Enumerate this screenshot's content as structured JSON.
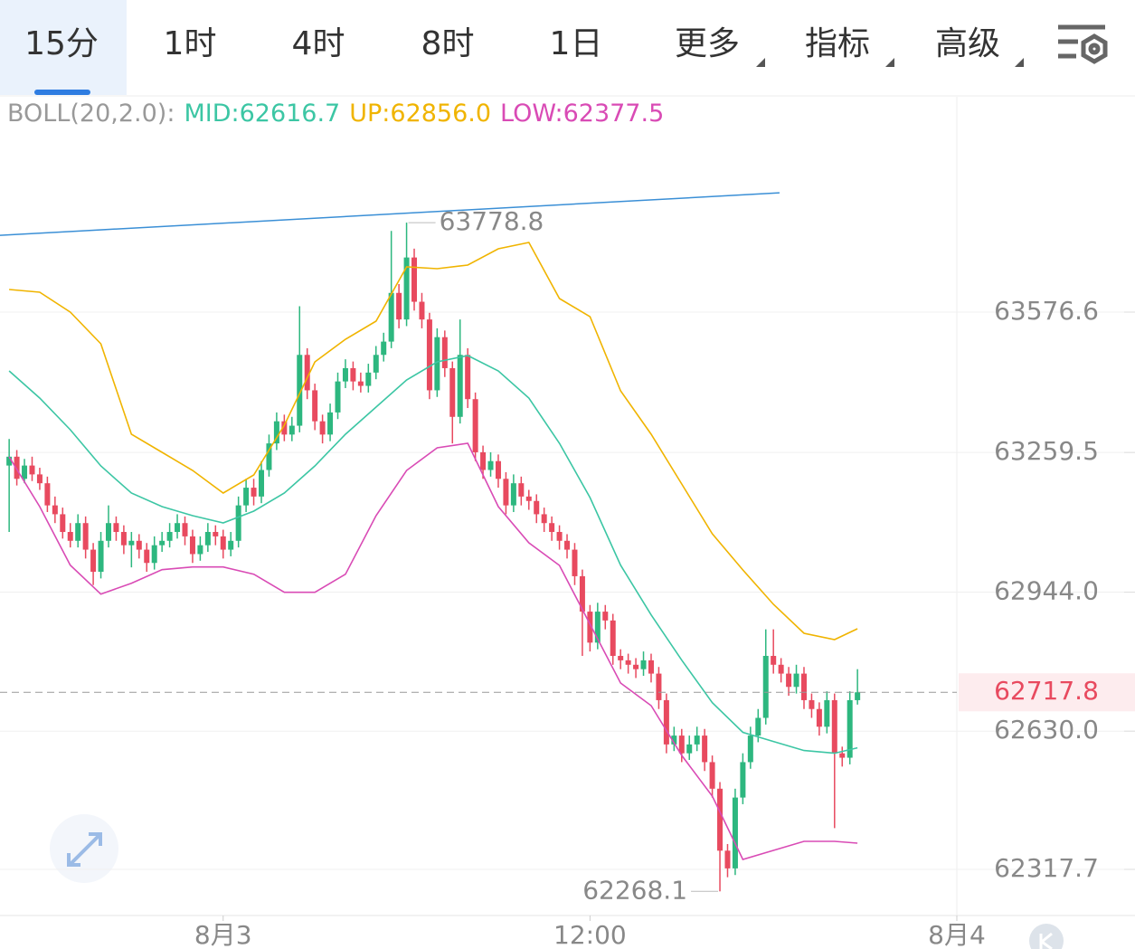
{
  "tabs": [
    "15分",
    "1时",
    "4时",
    "8时",
    "1日",
    "更多",
    "指标",
    "高级"
  ],
  "chart_data": {
    "type": "candlestick",
    "indicator_label": "BOLL(20,2.0):",
    "mid_label": "MID:62616.7",
    "up_label": "UP:62856.0",
    "low_label": "LOW:62377.5",
    "up_color": "#2db77f",
    "down_color": "#e84a5f",
    "x": [
      -7,
      -6.75,
      -6.5,
      -6.25,
      -6,
      -5.75,
      -5.5,
      -5.25,
      -5,
      -4.75,
      -4.5,
      -4.25,
      -4,
      -3.75,
      -3.5,
      -3.25,
      -3,
      -2.75,
      -2.5,
      -2.25,
      -2,
      -1.75,
      -1.5,
      -1.25,
      -1,
      -0.75,
      -0.5,
      -0.25,
      0,
      0.25,
      0.5,
      0.75,
      1,
      1.25,
      1.5,
      1.75,
      2,
      2.25,
      2.5,
      2.75,
      3,
      3.25,
      3.5,
      3.75,
      4,
      4.25,
      4.5,
      4.75,
      5,
      5.25,
      5.5,
      5.75,
      6,
      6.25,
      6.5,
      6.75,
      7,
      7.25,
      7.5,
      7.75,
      8,
      8.25,
      8.5,
      8.75,
      9,
      9.25,
      9.5,
      9.75,
      10,
      10.25,
      10.5,
      10.75,
      11,
      11.25,
      11.5,
      11.75,
      12,
      12.25,
      12.5,
      12.75,
      13,
      13.25,
      13.5,
      13.75,
      14,
      14.25,
      14.5,
      14.75,
      15,
      15.25,
      15.5,
      15.75,
      16,
      16.25,
      16.5,
      16.75,
      17,
      17.25,
      17.5,
      17.75,
      18,
      18.25,
      18.5,
      18.75,
      19,
      19.25,
      19.5,
      19.75,
      20,
      20.25,
      20.5,
      20.75
    ],
    "open": [
      63230,
      63250,
      63200,
      63230,
      63210,
      63190,
      63140,
      63120,
      63080,
      63060,
      63100,
      63040,
      62990,
      63060,
      63100,
      63080,
      63050,
      63060,
      63040,
      63010,
      63050,
      63060,
      63080,
      63100,
      63070,
      63030,
      63050,
      63080,
      63070,
      63040,
      63060,
      63140,
      63180,
      63160,
      63220,
      63280,
      63330,
      63300,
      63320,
      63480,
      63400,
      63330,
      63300,
      63350,
      63420,
      63450,
      63420,
      63410,
      63440,
      63480,
      63510,
      63620,
      63560,
      63700,
      63600,
      63560,
      63400,
      63520,
      63450,
      63340,
      63480,
      63380,
      63260,
      63220,
      63240,
      63200,
      63140,
      63190,
      63160,
      63150,
      63120,
      63100,
      63080,
      63060,
      63040,
      62980,
      62900,
      62830,
      62900,
      62880,
      62800,
      62790,
      62780,
      62770,
      62790,
      62760,
      62700,
      62600,
      62620,
      62580,
      62600,
      62620,
      62560,
      62500,
      62360,
      62320,
      62480,
      62560,
      62620,
      62660,
      62800,
      62780,
      62760,
      62730,
      62760,
      62700,
      62680,
      62640,
      62700,
      62580,
      62570,
      62700
    ],
    "high": [
      63290,
      63265,
      63245,
      63250,
      63225,
      63205,
      63160,
      63135,
      63100,
      63120,
      63115,
      63055,
      63080,
      63140,
      63115,
      63095,
      63080,
      63075,
      63055,
      63070,
      63080,
      63100,
      63120,
      63115,
      63085,
      63070,
      63100,
      63095,
      63085,
      63080,
      63160,
      63200,
      63200,
      63240,
      63300,
      63350,
      63345,
      63340,
      63590,
      63495,
      63415,
      63345,
      63370,
      63440,
      63470,
      63465,
      63440,
      63460,
      63500,
      63530,
      63760,
      63640,
      63778.8,
      63720,
      63620,
      63575,
      63540,
      63535,
      63465,
      63560,
      63495,
      63395,
      63275,
      63260,
      63255,
      63215,
      63210,
      63205,
      63175,
      63165,
      63135,
      63115,
      63095,
      63075,
      63055,
      62995,
      62915,
      62920,
      62915,
      62895,
      62815,
      62805,
      62795,
      62810,
      62805,
      62775,
      62715,
      62640,
      62635,
      62620,
      62640,
      62635,
      62575,
      62515,
      62375,
      62500,
      62580,
      62640,
      62680,
      62860,
      62860,
      62795,
      62775,
      62780,
      62775,
      62715,
      62695,
      62720,
      62715,
      62595,
      62720,
      62770
    ],
    "low": [
      63080,
      63185,
      63190,
      63195,
      63175,
      63125,
      63100,
      63065,
      63045,
      63045,
      63020,
      62960,
      62975,
      63045,
      63060,
      63030,
      63000,
      63020,
      62990,
      62995,
      63035,
      63045,
      63065,
      63050,
      63010,
      63015,
      63035,
      63050,
      63020,
      63025,
      63045,
      63125,
      63140,
      63145,
      63205,
      63265,
      63285,
      63285,
      63305,
      63380,
      63310,
      63280,
      63285,
      63335,
      63405,
      63400,
      63395,
      63395,
      63425,
      63465,
      63495,
      63540,
      63545,
      63580,
      63540,
      63380,
      63385,
      63430,
      63280,
      63325,
      63360,
      63240,
      63200,
      63205,
      63180,
      63120,
      63125,
      63140,
      63130,
      63100,
      63080,
      63060,
      63040,
      63020,
      62960,
      62800,
      62810,
      62815,
      62860,
      62780,
      62770,
      62760,
      62750,
      62755,
      62740,
      62680,
      62580,
      62585,
      62560,
      62565,
      62585,
      62540,
      62480,
      62268.1,
      62300,
      62305,
      62465,
      62545,
      62605,
      62645,
      62760,
      62740,
      62710,
      62715,
      62680,
      62660,
      62620,
      62625,
      62411,
      62550,
      62555,
      62690
    ],
    "close": [
      63250,
      63200,
      63230,
      63210,
      63190,
      63140,
      63120,
      63080,
      63060,
      63100,
      63040,
      62990,
      63060,
      63100,
      63080,
      63050,
      63060,
      63040,
      63010,
      63050,
      63060,
      63080,
      63100,
      63070,
      63030,
      63050,
      63080,
      63070,
      63040,
      63060,
      63140,
      63180,
      63160,
      63220,
      63280,
      63330,
      63300,
      63320,
      63480,
      63400,
      63330,
      63300,
      63350,
      63420,
      63450,
      63420,
      63410,
      63440,
      63480,
      63510,
      63620,
      63560,
      63700,
      63600,
      63560,
      63400,
      63520,
      63450,
      63340,
      63480,
      63380,
      63260,
      63220,
      63240,
      63200,
      63140,
      63190,
      63160,
      63150,
      63120,
      63100,
      63080,
      63060,
      63040,
      62980,
      62900,
      62830,
      62900,
      62880,
      62800,
      62790,
      62780,
      62770,
      62790,
      62760,
      62700,
      62600,
      62620,
      62580,
      62600,
      62620,
      62560,
      62500,
      62360,
      62320,
      62480,
      62560,
      62620,
      62660,
      62800,
      62780,
      62760,
      62730,
      62760,
      62700,
      62680,
      62640,
      62700,
      62580,
      62570,
      62700,
      62717.8
    ],
    "band_x": [
      -7,
      -6,
      -5,
      -4,
      -3,
      -2,
      -1,
      0,
      1,
      2,
      3,
      4,
      5,
      6,
      7,
      8,
      9,
      10,
      11,
      12,
      13,
      14,
      15,
      16,
      17,
      18,
      19,
      20,
      20.75
    ],
    "bands": [
      {
        "color": "#f0b400",
        "values": [
          63627.7,
          63621.6,
          63576.6,
          63505.1,
          63300.7,
          63259.8,
          63219.0,
          63167.9,
          63208.7,
          63321.1,
          63464.2,
          63515.3,
          63556.2,
          63678.8,
          63674.7,
          63682.9,
          63719.7,
          63734.0,
          63607.3,
          63566.4,
          63398.8,
          63300.7,
          63188.3,
          63075.9,
          62994.1,
          62916.5,
          62851.1,
          62836.8,
          62861.3
        ]
      },
      {
        "color": "#3cc6a4",
        "values": [
          63443.8,
          63382.4,
          63310.9,
          63229.2,
          63167.9,
          63137.2,
          63116.8,
          63100.4,
          63127.0,
          63167.9,
          63229.2,
          63300.7,
          63362.0,
          63423.3,
          63464.2,
          63478.5,
          63443.8,
          63382.4,
          63280.3,
          63157.6,
          63005.0,
          62892.6,
          62790.4,
          62694.4,
          62627.3,
          62606.7,
          62586.2,
          62580.1,
          62592.4
        ]
      },
      {
        "color": "#d94bb5",
        "values": [
          63249.6,
          63137.2,
          63005.0,
          62939.6,
          62964.1,
          62994.8,
          63000.9,
          63000.9,
          62984.6,
          62943.7,
          62943.7,
          62984.6,
          63116.8,
          63219.0,
          63270.1,
          63280.3,
          63137.2,
          63055.5,
          63004.4,
          62871.5,
          62738.7,
          62687.6,
          62575.2,
          62483.2,
          62340.2,
          62360.6,
          62381.0,
          62381.0,
          62376.9
        ]
      }
    ],
    "trendline": {
      "color": "#3a8fd6",
      "x": [
        -7.3,
        18.2
      ],
      "values": [
        63750,
        63846
      ]
    },
    "xlim": [
      -7.3,
      24
    ],
    "xticks": [
      {
        "value": 0,
        "label": "8月3"
      },
      {
        "value": 12,
        "label": "12:00"
      },
      {
        "value": 24,
        "label": "8月4"
      }
    ],
    "ylim": [
      62213.5,
      64063.0
    ],
    "yticks": [
      63576.6,
      63259.5,
      {
        "value": 62944,
        "label": "62944.0"
      },
      {
        "value": 62630,
        "label": "62630.0"
      },
      62317.7
    ],
    "grid": true
  }
}
